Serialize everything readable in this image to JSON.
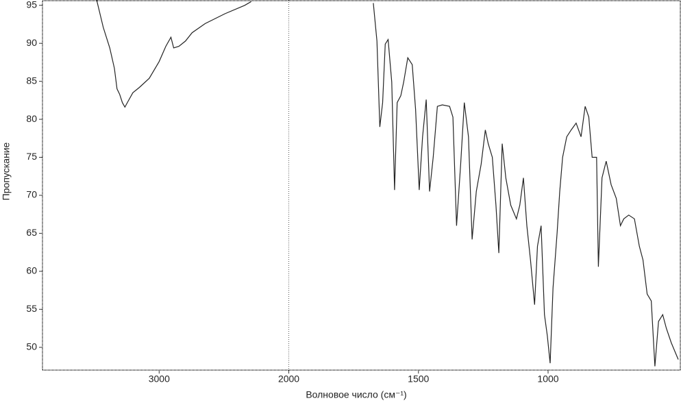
{
  "chart_data": {
    "type": "line",
    "x_label": "Волновое число (см⁻¹)",
    "y_label": "Пропускание",
    "xlim": [
      3900,
      490
    ],
    "ylim": [
      47,
      95.7
    ],
    "xticks": [
      3000,
      2000,
      1500,
      1000
    ],
    "yticks": [
      50,
      55,
      60,
      65,
      70,
      75,
      80,
      85,
      90,
      95
    ],
    "x_scale_break": 2000,
    "x_scale_ratio": 2,
    "color": "#222222",
    "x": [
      3482,
      3431,
      3381,
      3345,
      3325,
      3305,
      3284,
      3264,
      3239,
      3203,
      3152,
      3076,
      3000,
      2949,
      2909,
      2888,
      2848,
      2797,
      2746,
      2645,
      2492,
      2340,
      2289,
      null,
      1674,
      1660,
      1649,
      1638,
      1628,
      1617,
      1603,
      1592,
      1582,
      1568,
      1557,
      1541,
      1524,
      1511,
      1497,
      1484,
      1470,
      1457,
      1443,
      1427,
      1408,
      1380,
      1367,
      1353,
      1337,
      1323,
      1307,
      1293,
      1277,
      1258,
      1242,
      1231,
      1215,
      1201,
      1190,
      1177,
      1163,
      1144,
      1122,
      1109,
      1095,
      1082,
      1068,
      1052,
      1041,
      1027,
      1014,
      1003,
      992,
      981,
      965,
      955,
      944,
      928,
      911,
      892,
      873,
      857,
      843,
      830,
      813,
      806,
      792,
      776,
      757,
      737,
      721,
      708,
      689,
      667,
      648,
      634,
      618,
      602,
      588,
      574,
      558,
      544,
      525,
      509,
      498
    ],
    "values": [
      95.7,
      92.1,
      89.4,
      86.7,
      84,
      83.3,
      82.2,
      81.6,
      82.4,
      83.5,
      84.2,
      85.4,
      87.6,
      89.6,
      90.8,
      89.4,
      89.6,
      90.3,
      91.4,
      92.6,
      93.9,
      95,
      95.5,
      null,
      95.3,
      90.3,
      79,
      82.2,
      89.9,
      90.5,
      84.9,
      70.7,
      82.2,
      83.1,
      84.9,
      88.1,
      87.2,
      81.3,
      70.7,
      77.7,
      82.6,
      70.5,
      75,
      81.7,
      81.9,
      81.7,
      80.3,
      66,
      74.1,
      82.2,
      77.7,
      64.2,
      70.5,
      74.1,
      78.6,
      76.8,
      75,
      68.7,
      62.4,
      76.8,
      72.3,
      68.7,
      66.9,
      68.7,
      72.3,
      66,
      61.5,
      55.6,
      63.3,
      66,
      54.3,
      51.5,
      47.9,
      57.8,
      65.1,
      70.5,
      75,
      77.7,
      78.6,
      79.5,
      77.7,
      81.7,
      80.3,
      75,
      75,
      60.6,
      72.3,
      74.5,
      71.4,
      69.6,
      66,
      66.9,
      67.4,
      66.9,
      63.3,
      61.5,
      57,
      56.1,
      47.5,
      53.4,
      54.3,
      52.5,
      50.6,
      49.3,
      48.4
    ]
  }
}
